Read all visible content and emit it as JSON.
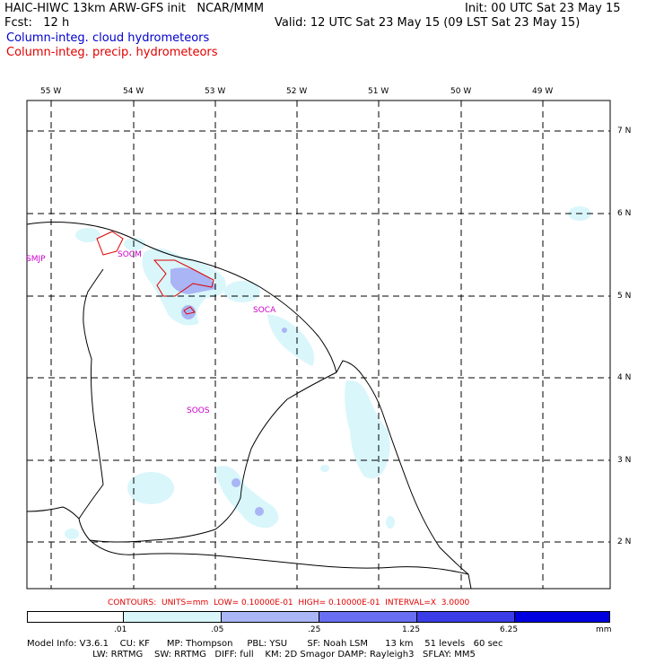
{
  "header": {
    "title": "HAIC-HIWC 13km ARW-GFS init   NCAR/MMM",
    "fcst": "Fcst:   12 h",
    "init": "Init: 00 UTC Sat 23 May 15",
    "valid": "Valid: 12 UTC Sat 23 May 15 (09 LST Sat 23 May 15)",
    "legend_cloud": "Column-integ. cloud hydrometeors",
    "legend_precip": "Column-integ. precip. hydrometeors"
  },
  "colors": {
    "cloud_text": "#0000cc",
    "precip_text": "#e00000",
    "station": "#cc00cc",
    "shade_1": "#d9f6fb",
    "shade_2": "#a9b5f5",
    "shade_3": "#6a6ef2",
    "shade_4": "#3b3de8",
    "shade_5": "#0000e0"
  },
  "longitude_labels": [
    "55 W",
    "54 W",
    "53 W",
    "52 W",
    "51 W",
    "50 W",
    "49 W"
  ],
  "latitude_labels": [
    "7 N",
    "6 N",
    "5 N",
    "4 N",
    "3 N",
    "2 N"
  ],
  "stations": [
    {
      "name": "SMJP"
    },
    {
      "name": "SOCM"
    },
    {
      "name": "SOCA"
    },
    {
      "name": "SOOS"
    }
  ],
  "contours_line": "CONTOURS:  UNITS=mm  LOW= 0.10000E-01  HIGH= 0.10000E-01  INTERVAL=X  3.0000",
  "colorbar": {
    "ticks": [
      ".01",
      ".05",
      ".25",
      "1.25",
      "6.25"
    ],
    "unit": "mm"
  },
  "footer": {
    "line1": "Model Info: V3.6.1    CU: KF      MP: Thompson     PBL: YSU       SF: Noah LSM      13 km    51 levels   60 sec",
    "line2": "                       LW: RRTMG    SW: RRTMG   DIFF: full    KM: 2D Smagor DAMP: Rayleigh3   SFLAY: MM5"
  }
}
